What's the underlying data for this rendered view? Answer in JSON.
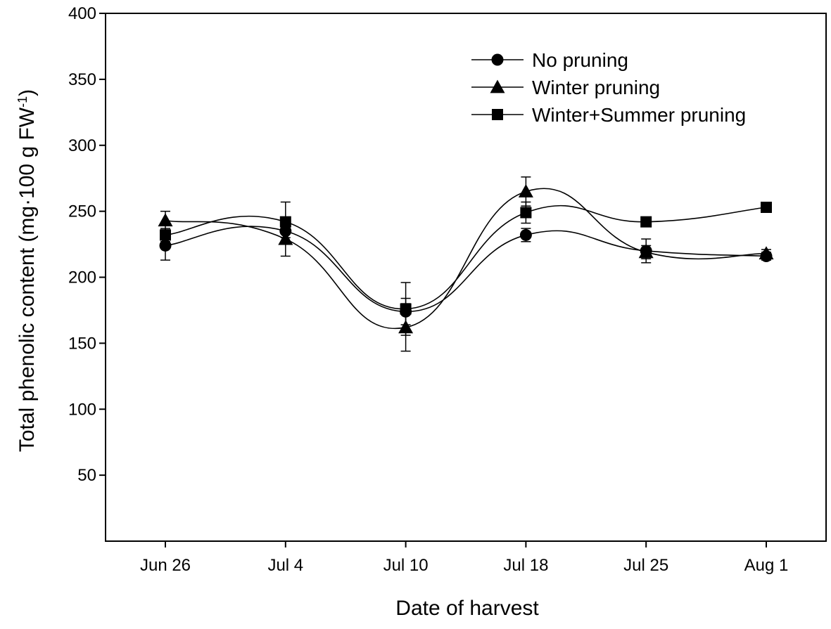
{
  "chart_data": {
    "type": "line",
    "title": "",
    "xlabel": "Date of harvest",
    "ylabel_main": "Total phenolic content (mg·100 g FW",
    "ylabel_sup": "-1",
    "ylabel_close": ")",
    "categories": [
      "Jun 26",
      "Jul 4",
      "Jul 10",
      "Jul 18",
      "Jul 25",
      "Aug 1"
    ],
    "ylim": [
      0,
      400
    ],
    "yticks": [
      50,
      100,
      150,
      200,
      250,
      300,
      350,
      400
    ],
    "ytick_labels": [
      "50",
      "100",
      "150",
      "200",
      "250",
      "300",
      "350",
      "400"
    ],
    "legend_position": "top-right",
    "series": [
      {
        "name": "No pruning",
        "marker": "circle",
        "values": [
          224,
          235,
          174,
          232,
          220,
          216
        ],
        "errors": [
          11,
          5,
          10,
          5,
          9,
          3
        ]
      },
      {
        "name": "Winter pruning",
        "marker": "triangle",
        "values": [
          243,
          229,
          162,
          265,
          219,
          218
        ],
        "errors": [
          7,
          13,
          18,
          11,
          5,
          3
        ]
      },
      {
        "name": "Winter+Summer pruning",
        "marker": "square",
        "values": [
          232,
          242,
          176,
          249,
          242,
          253
        ],
        "errors": [
          5,
          15,
          20,
          8,
          2,
          3
        ]
      }
    ],
    "colors": {
      "line": "#000000",
      "background": "#ffffff"
    }
  }
}
